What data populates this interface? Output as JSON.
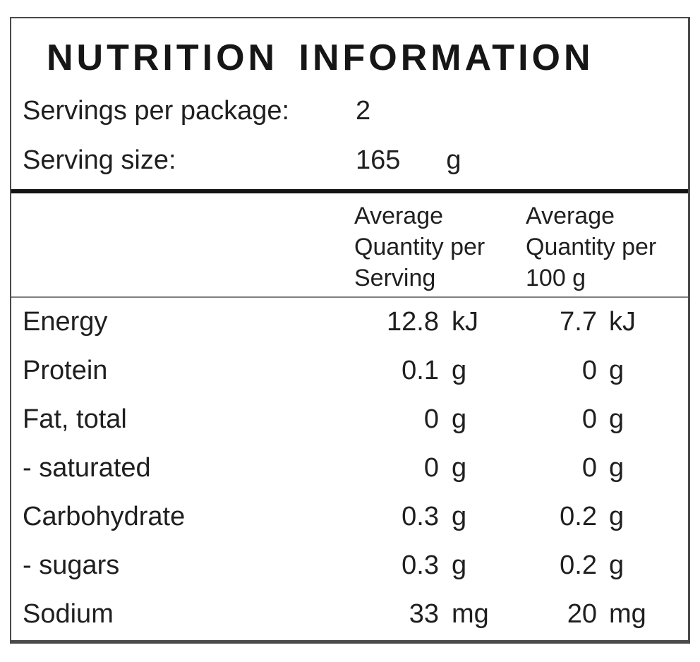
{
  "label": {
    "title": "NUTRITION INFORMATION",
    "servings_per_package": {
      "label": "Servings per package:",
      "value": "2"
    },
    "serving_size": {
      "label": "Serving size:",
      "value": "165",
      "unit": "g"
    },
    "columns": [
      {
        "name": "per-serving",
        "lines": [
          "Average",
          "Quantity per",
          "Serving"
        ]
      },
      {
        "name": "per-100g",
        "lines": [
          "Average",
          "Quantity per",
          "100 g"
        ]
      }
    ],
    "rows": [
      {
        "name": "Energy",
        "per_serving": {
          "value": "12.8",
          "unit": "kJ"
        },
        "per_100g": {
          "value": "7.7",
          "unit": "kJ"
        }
      },
      {
        "name": "Protein",
        "per_serving": {
          "value": "0.1",
          "unit": "g"
        },
        "per_100g": {
          "value": "0",
          "unit": "g"
        }
      },
      {
        "name": "Fat, total",
        "per_serving": {
          "value": "0",
          "unit": "g"
        },
        "per_100g": {
          "value": "0",
          "unit": "g"
        }
      },
      {
        "name": "- saturated",
        "per_serving": {
          "value": "0",
          "unit": "g"
        },
        "per_100g": {
          "value": "0",
          "unit": "g"
        }
      },
      {
        "name": "Carbohydrate",
        "per_serving": {
          "value": "0.3",
          "unit": "g"
        },
        "per_100g": {
          "value": "0.2",
          "unit": "g"
        }
      },
      {
        "name": "- sugars",
        "per_serving": {
          "value": "0.3",
          "unit": "g"
        },
        "per_100g": {
          "value": "0.2",
          "unit": "g"
        }
      },
      {
        "name": "Sodium",
        "per_serving": {
          "value": "33",
          "unit": "mg"
        },
        "per_100g": {
          "value": "20",
          "unit": "mg"
        }
      }
    ],
    "colors": {
      "text": "#1f1f1f",
      "border": "#4a4a4a",
      "thick_rule": "#141414",
      "thin_rule": "#7f7f7f",
      "background": "#ffffff"
    }
  }
}
